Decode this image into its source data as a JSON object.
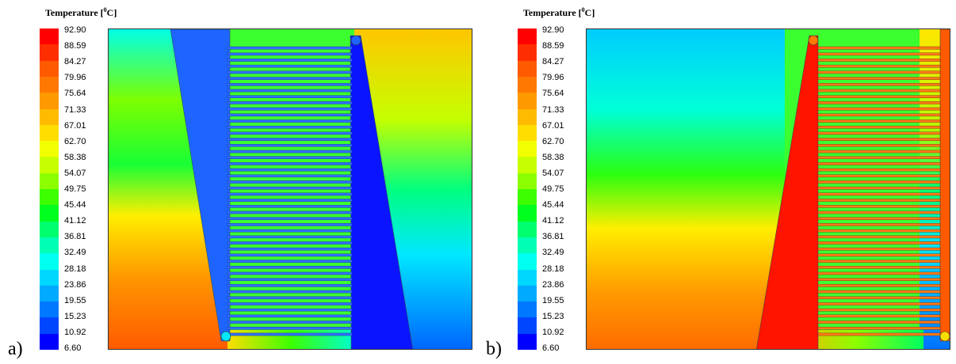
{
  "legend": {
    "title_main": "Temperature [",
    "title_sup": "0",
    "title_end": "C]",
    "ticks": [
      "92.90",
      "88.59",
      "84.27",
      "79.96",
      "75.64",
      "71.33",
      "67.01",
      "62.70",
      "58.38",
      "54.07",
      "49.75",
      "45.44",
      "41.12",
      "36.81",
      "32.49",
      "28.18",
      "23.86",
      "19.55",
      "15.23",
      "10.92",
      "6.60"
    ],
    "colors": [
      "#ff0000",
      "#ff2e00",
      "#ff5a00",
      "#ff7800",
      "#ff9900",
      "#ffbb00",
      "#ffdd00",
      "#f2ff00",
      "#c8ff00",
      "#8cff00",
      "#3cff00",
      "#00ff1e",
      "#00ff6e",
      "#00ffb4",
      "#00fff0",
      "#00d7ff",
      "#00aaff",
      "#0078ff",
      "#0046ff",
      "#0000ff"
    ]
  },
  "panels": [
    {
      "label": "a)"
    },
    {
      "label": "b)"
    }
  ]
}
